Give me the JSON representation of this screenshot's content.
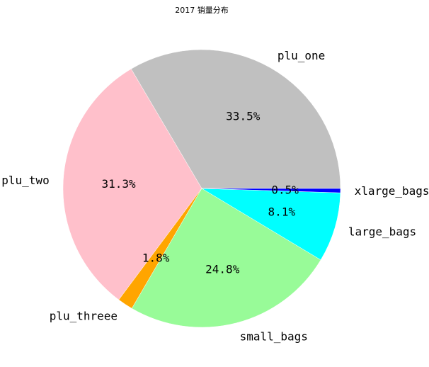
{
  "chart_data": {
    "type": "pie",
    "title": "2017 销量分布",
    "start_angle_deg": 0,
    "direction": "counterclockwise",
    "slices": [
      {
        "label": "plu_one",
        "value": 33.5,
        "pct_text": "33.5%",
        "color": "#c0c0c0"
      },
      {
        "label": "plu_two",
        "value": 31.3,
        "pct_text": "31.3%",
        "color": "#ffc0cb"
      },
      {
        "label": "plu_threee",
        "value": 1.8,
        "pct_text": "1.8%",
        "color": "#ffa500"
      },
      {
        "label": "small_bags",
        "value": 24.8,
        "pct_text": "24.8%",
        "color": "#98fb98"
      },
      {
        "label": "large_bags",
        "value": 8.1,
        "pct_text": "8.1%",
        "color": "#00ffff"
      },
      {
        "label": "xlarge_bags",
        "value": 0.5,
        "pct_text": "0.5%",
        "color": "#0000ff"
      }
    ]
  }
}
